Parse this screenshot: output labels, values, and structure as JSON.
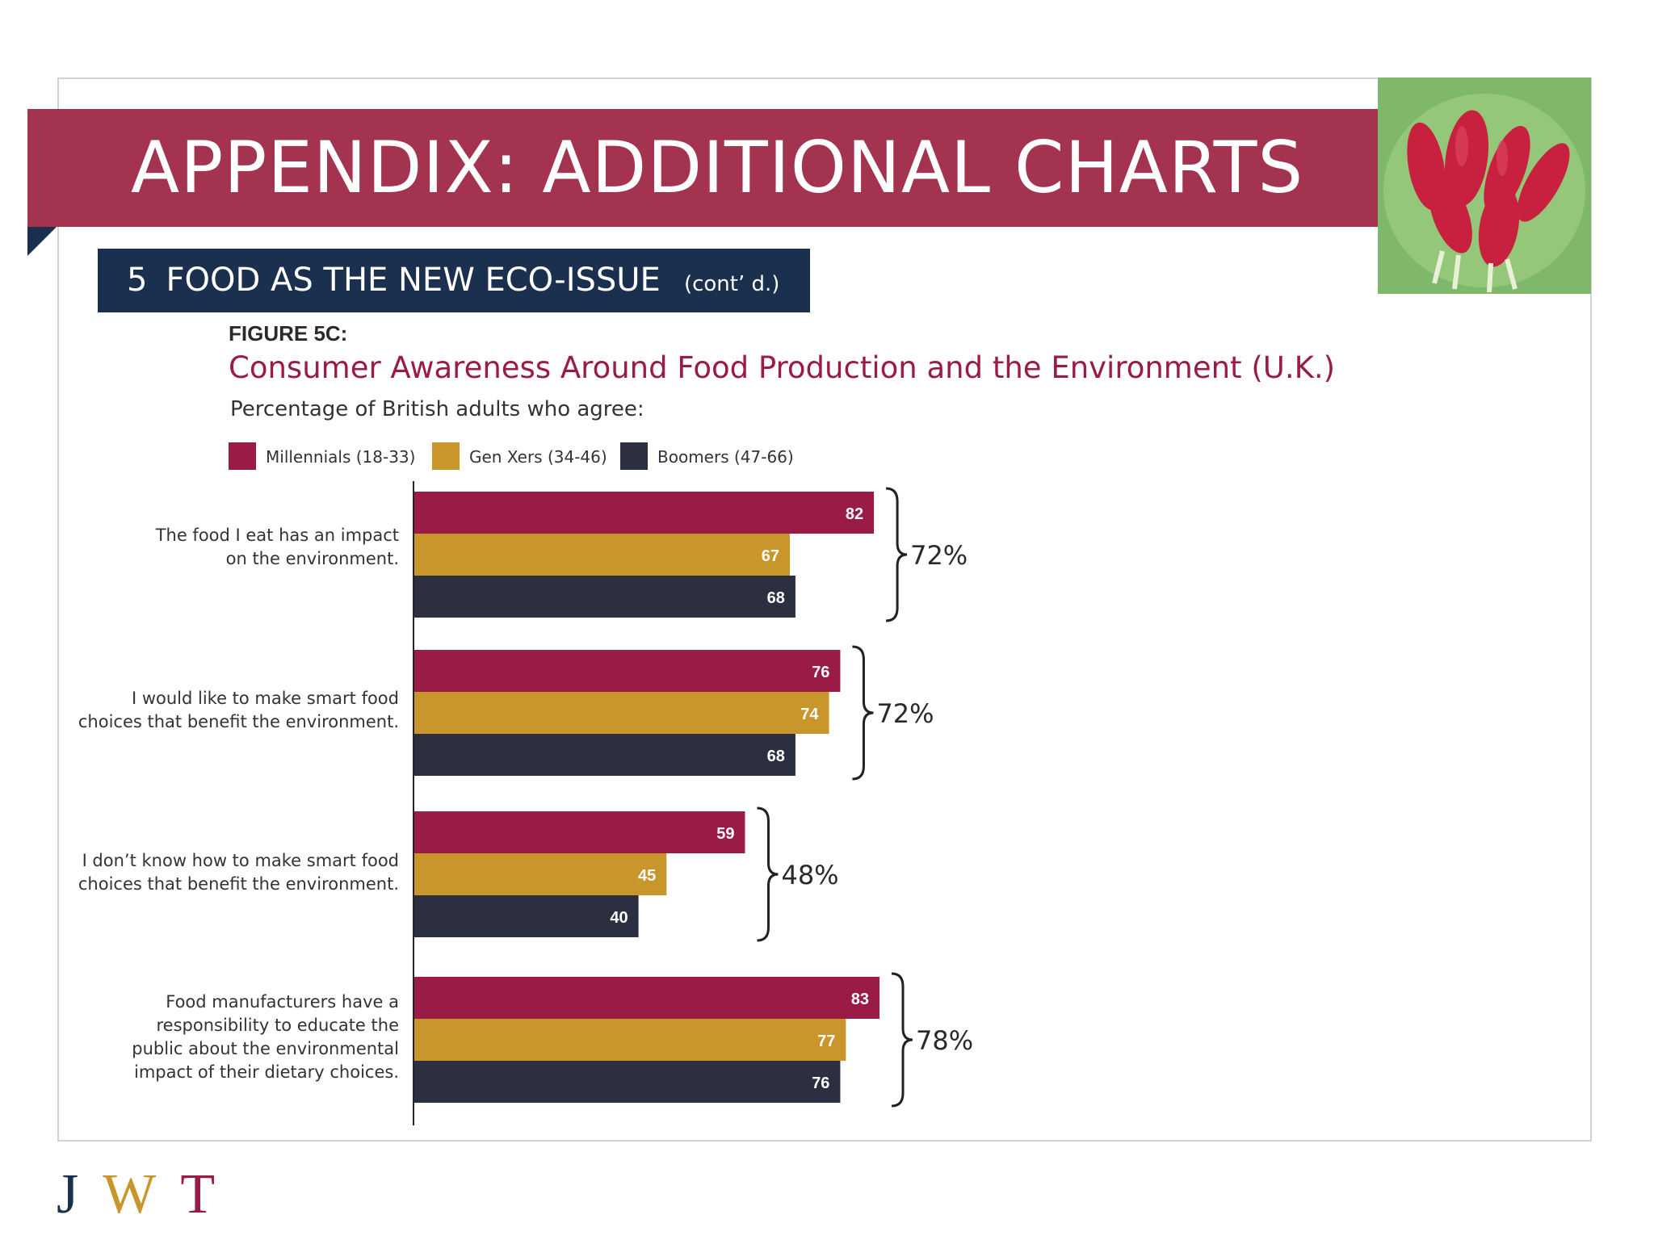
{
  "slide": {
    "title": "APPENDIX: ADDITIONAL CHARTS",
    "section_number": "5",
    "section_title": "FOOD AS THE NEW ECO-ISSUE",
    "section_cont": "(cont’ d.)",
    "logo": {
      "j": "J",
      "w": "W",
      "t": "T"
    }
  },
  "colors": {
    "banner": "#a3334f",
    "section_bar": "#1b2f4e",
    "millennials": "#9b1b47",
    "genx": "#c9962b",
    "boomers": "#2c2f3f",
    "title_text": "#9b1b47"
  },
  "chart_data": {
    "type": "bar",
    "orientation": "horizontal",
    "figure_label": "FIGURE 5C:",
    "title": "Consumer Awareness Around Food Production and the Environment (U.K.)",
    "subtitle": "Percentage of British adults who agree:",
    "legend_position": "top-left",
    "xlim": [
      0,
      100
    ],
    "categories": [
      [
        "The food I eat has an impact",
        "on the environment."
      ],
      [
        "I would like to make smart food",
        "choices that benefit the environment."
      ],
      [
        "I don’t know how to make smart food",
        "choices that benefit the environment."
      ],
      [
        "Food manufacturers have a",
        "responsibility to educate the",
        "public about the environmental",
        "impact of their dietary choices."
      ]
    ],
    "series": [
      {
        "name": "Millennials (18-33)",
        "values": [
          82,
          76,
          59,
          83
        ]
      },
      {
        "name": "Gen Xers (34-46)",
        "values": [
          67,
          74,
          45,
          77
        ]
      },
      {
        "name": "Boomers (47-66)",
        "values": [
          68,
          68,
          40,
          76
        ]
      }
    ],
    "totals": [
      "72%",
      "72%",
      "48%",
      "78%"
    ]
  }
}
